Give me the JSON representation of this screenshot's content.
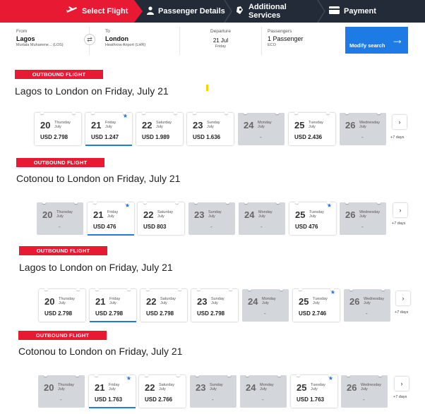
{
  "stepper": {
    "steps": [
      {
        "label": "Select Flight",
        "icon": "plane-icon",
        "active": true
      },
      {
        "label": "Passenger Details",
        "icon": "person-icon",
        "active": false
      },
      {
        "label": "Additional Services",
        "icon": "services-icon",
        "active": false
      },
      {
        "label": "Payment",
        "icon": "card-icon",
        "active": false
      }
    ]
  },
  "search": {
    "from_label": "From",
    "from_city": "Lagos",
    "from_airport": "Murtala Muhamme... (LOS)",
    "to_label": "To",
    "to_city": "London",
    "to_airport": "Heathrow Airport (LHR)",
    "departure_label": "Departure",
    "departure_date": "21 Jul",
    "departure_day": "Friday",
    "passengers_label": "Passengers",
    "passengers_value": "1 Passenger",
    "cabin": "ECO",
    "modify_label": "Modify search"
  },
  "colors": {
    "accent_red": "#e81932",
    "accent_blue": "#1e7be6",
    "header_bg": "#232b38",
    "unavailable_bg": "#d3d6da"
  },
  "next_label": "+7 days",
  "sections": [
    {
      "badge": "OUTBOUND FLIGHT",
      "title": "Lagos to London on Friday, July 21",
      "days": [
        {
          "day": "20",
          "weekday": "Thursday",
          "month": "July",
          "price": "USD 2.798",
          "available": true,
          "selected": false,
          "star": false
        },
        {
          "day": "21",
          "weekday": "Friday",
          "month": "July",
          "price": "USD 1.247",
          "available": true,
          "selected": true,
          "star": true
        },
        {
          "day": "22",
          "weekday": "Saturday",
          "month": "July",
          "price": "USD 1.989",
          "available": true,
          "selected": false,
          "star": false
        },
        {
          "day": "23",
          "weekday": "Sunday",
          "month": "July",
          "price": "USD 1.636",
          "available": true,
          "selected": false,
          "star": false
        },
        {
          "day": "24",
          "weekday": "Monday",
          "month": "July",
          "price": "-",
          "available": false,
          "selected": false,
          "star": false
        },
        {
          "day": "25",
          "weekday": "Tuesday",
          "month": "July",
          "price": "USD 2.436",
          "available": true,
          "selected": false,
          "star": false
        },
        {
          "day": "26",
          "weekday": "Wednesday",
          "month": "July",
          "price": "-",
          "available": false,
          "selected": false,
          "star": false
        }
      ]
    },
    {
      "badge": "OUTBOUND FLIGHT",
      "title": "Cotonou to London on Friday, July 21",
      "days": [
        {
          "day": "20",
          "weekday": "Thursday",
          "month": "July",
          "price": "-",
          "available": false,
          "selected": false,
          "star": false
        },
        {
          "day": "21",
          "weekday": "Friday",
          "month": "July",
          "price": "USD 476",
          "available": true,
          "selected": true,
          "star": true
        },
        {
          "day": "22",
          "weekday": "Saturday",
          "month": "July",
          "price": "USD 803",
          "available": true,
          "selected": false,
          "star": false
        },
        {
          "day": "23",
          "weekday": "Sunday",
          "month": "July",
          "price": "-",
          "available": false,
          "selected": false,
          "star": false
        },
        {
          "day": "24",
          "weekday": "Monday",
          "month": "July",
          "price": "-",
          "available": false,
          "selected": false,
          "star": false
        },
        {
          "day": "25",
          "weekday": "Tuesday",
          "month": "July",
          "price": "USD 476",
          "available": true,
          "selected": false,
          "star": true
        },
        {
          "day": "26",
          "weekday": "Wednesday",
          "month": "July",
          "price": "-",
          "available": false,
          "selected": false,
          "star": false
        }
      ]
    },
    {
      "badge": "OUTBOUND FLIGHT",
      "title": "Lagos to London on Friday, July 21",
      "days": [
        {
          "day": "20",
          "weekday": "Thursday",
          "month": "July",
          "price": "USD 2.798",
          "available": true,
          "selected": false,
          "star": false
        },
        {
          "day": "21",
          "weekday": "Friday",
          "month": "July",
          "price": "USD 2.798",
          "available": true,
          "selected": true,
          "star": false
        },
        {
          "day": "22",
          "weekday": "Saturday",
          "month": "July",
          "price": "USD 2.798",
          "available": true,
          "selected": false,
          "star": false
        },
        {
          "day": "23",
          "weekday": "Sunday",
          "month": "July",
          "price": "USD 2.798",
          "available": true,
          "selected": false,
          "star": false
        },
        {
          "day": "24",
          "weekday": "Monday",
          "month": "July",
          "price": "-",
          "available": false,
          "selected": false,
          "star": false
        },
        {
          "day": "25",
          "weekday": "Tuesday",
          "month": "July",
          "price": "USD 2.746",
          "available": true,
          "selected": false,
          "star": true
        },
        {
          "day": "26",
          "weekday": "Wednesday",
          "month": "July",
          "price": "-",
          "available": false,
          "selected": false,
          "star": false
        }
      ]
    },
    {
      "badge": "OUTBOUND FLIGHT",
      "title": "Cotonou to London on Friday, July 21",
      "days": [
        {
          "day": "20",
          "weekday": "Thursday",
          "month": "July",
          "price": "-",
          "available": false,
          "selected": false,
          "star": false
        },
        {
          "day": "21",
          "weekday": "Friday",
          "month": "July",
          "price": "USD 1.763",
          "available": true,
          "selected": true,
          "star": true
        },
        {
          "day": "22",
          "weekday": "Saturday",
          "month": "July",
          "price": "USD 2.766",
          "available": true,
          "selected": false,
          "star": false
        },
        {
          "day": "23",
          "weekday": "Sunday",
          "month": "July",
          "price": "-",
          "available": false,
          "selected": false,
          "star": false
        },
        {
          "day": "24",
          "weekday": "Monday",
          "month": "July",
          "price": "-",
          "available": false,
          "selected": false,
          "star": false
        },
        {
          "day": "25",
          "weekday": "Tuesday",
          "month": "July",
          "price": "USD 1.763",
          "available": true,
          "selected": false,
          "star": true
        },
        {
          "day": "26",
          "weekday": "Wednesday",
          "month": "July",
          "price": "-",
          "available": false,
          "selected": false,
          "star": false
        }
      ]
    }
  ]
}
